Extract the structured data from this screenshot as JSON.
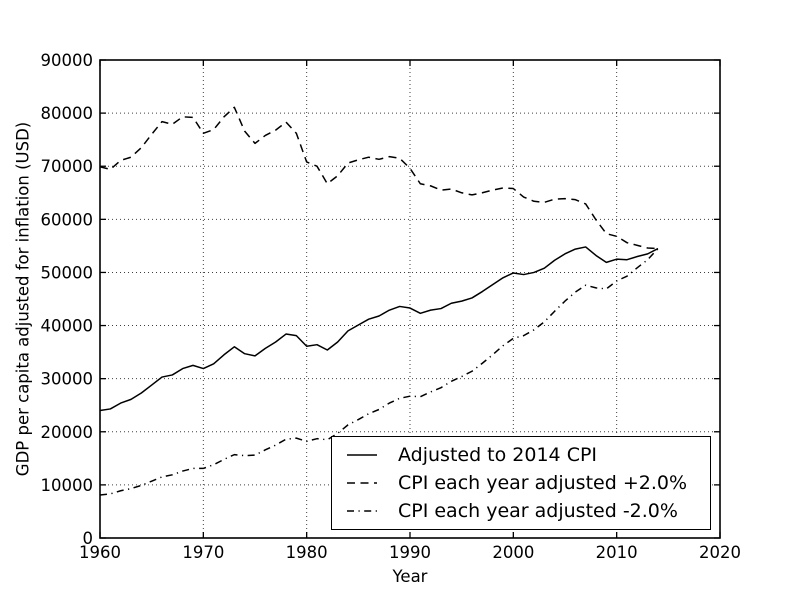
{
  "figure": {
    "background": "#ffffff",
    "text_color": "#000000",
    "line_color": "#000000",
    "grid_color": "#000000"
  },
  "chart_data": {
    "type": "line",
    "title": "",
    "xlabel": "Year",
    "ylabel": "GDP per capita adjusted for inflation (USD)",
    "xlim": [
      1960,
      2020
    ],
    "ylim": [
      0,
      90000
    ],
    "xticks": [
      1960,
      1970,
      1980,
      1990,
      2000,
      2010,
      2020
    ],
    "yticks": [
      0,
      10000,
      20000,
      30000,
      40000,
      50000,
      60000,
      70000,
      80000,
      90000
    ],
    "grid": true,
    "grid_style": "dotted",
    "legend_position": "lower right",
    "x": [
      1960,
      1961,
      1962,
      1963,
      1964,
      1965,
      1966,
      1967,
      1968,
      1969,
      1970,
      1971,
      1972,
      1973,
      1974,
      1975,
      1976,
      1977,
      1978,
      1979,
      1980,
      1981,
      1982,
      1983,
      1984,
      1985,
      1986,
      1987,
      1988,
      1989,
      1990,
      1991,
      1992,
      1993,
      1994,
      1995,
      1996,
      1997,
      1998,
      1999,
      2000,
      2001,
      2002,
      2003,
      2004,
      2005,
      2006,
      2007,
      2008,
      2009,
      2010,
      2011,
      2012,
      2013,
      2014
    ],
    "series": [
      {
        "name": "Adjusted to 2014 CPI",
        "linestyle": "solid",
        "color": "#000000",
        "values": [
          24000,
          24300,
          25400,
          26100,
          27300,
          28800,
          30300,
          30700,
          31900,
          32500,
          31900,
          32800,
          34500,
          36000,
          34700,
          34300,
          35700,
          36900,
          38400,
          38100,
          36100,
          36400,
          35400,
          36900,
          39000,
          40100,
          41200,
          41800,
          42900,
          43600,
          43300,
          42300,
          42900,
          43200,
          44200,
          44600,
          45200,
          46400,
          47700,
          49000,
          49900,
          49600,
          50000,
          50800,
          52300,
          53500,
          54400,
          54800,
          53200,
          51900,
          52500,
          52400,
          53000,
          53500,
          54500
        ]
      },
      {
        "name": "CPI each year adjusted +2.0%",
        "linestyle": "dashed",
        "color": "#000000",
        "values": [
          69900,
          69400,
          71100,
          71700,
          73500,
          76000,
          78400,
          77900,
          79300,
          79200,
          76200,
          76900,
          79300,
          81100,
          76600,
          74300,
          75800,
          76800,
          78300,
          76200,
          70800,
          70000,
          66700,
          68200,
          70600,
          71200,
          71700,
          71300,
          71800,
          71500,
          69600,
          66700,
          66300,
          65500,
          65700,
          65000,
          64600,
          65000,
          65500,
          65900,
          65800,
          64200,
          63400,
          63200,
          63800,
          63900,
          63700,
          62900,
          59900,
          57300,
          56800,
          55600,
          55100,
          54600,
          54500
        ]
      },
      {
        "name": "CPI each year adjusted -2.0%",
        "linestyle": "dashdot",
        "color": "#000000",
        "values": [
          8100,
          8300,
          8900,
          9300,
          9900,
          10700,
          11500,
          11900,
          12600,
          13100,
          13100,
          13800,
          14800,
          15700,
          15500,
          15600,
          16600,
          17500,
          18600,
          18800,
          18200,
          18700,
          18500,
          19700,
          21300,
          22300,
          23400,
          24200,
          25400,
          26300,
          26700,
          26600,
          27500,
          28300,
          29500,
          30400,
          31400,
          32900,
          34500,
          36200,
          37600,
          38100,
          39200,
          40700,
          42700,
          44600,
          46300,
          47600,
          47100,
          46900,
          48400,
          49300,
          50900,
          52400,
          54500
        ]
      }
    ]
  }
}
